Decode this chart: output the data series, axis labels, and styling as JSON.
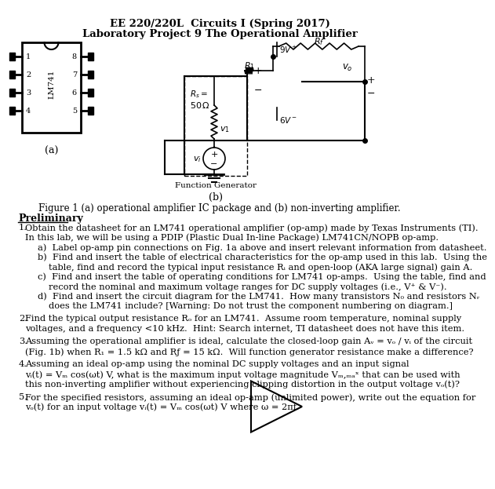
{
  "title1": "EE 220/220L  Circuits I (Spring 2017)",
  "title2": "Laboratory Project 9 The Operational Amplifier",
  "fig_caption": "Figure 1 (a) operational amplifier IC package and (b) non-inverting amplifier.",
  "section": "Preliminary",
  "items": [
    {
      "num": "1.",
      "lines": [
        "Obtain the datasheet for an LM741 operational amplifier (op-amp) made by Texas Instruments (TI).",
        "In this lab, we will be using a PDIP (Plastic Dual In-line Package) LM741CN/NOPB op-amp.",
        "a)  Label op-amp pin connections on Fig. 1a above and insert relevant information from datasheet.",
        "b)  Find and insert the table of electrical characteristics for the op-amp used in this lab.  Using the",
        "table, find and record the typical input resistance Rᵢ and open-loop (AKA large signal) gain A.",
        "c)  Find and insert the table of operating conditions for LM741 op-amps.  Using the table, find and",
        "record the nominal and maximum voltage ranges for DC supply voltages (i.e., V⁺ & V⁻).",
        "d)  Find and insert the circuit diagram for the LM741.  How many transistors N₀ and resistors Nᵣ",
        "does the LM741 include? [Warning: Do not trust the component numbering on diagram.]"
      ],
      "indents": [
        0,
        0,
        1,
        1,
        2,
        1,
        2,
        1,
        2
      ]
    },
    {
      "num": "2.",
      "lines": [
        "Find the typical output resistance Rₒ for an LM741.  Assume room temperature, nominal supply",
        "voltages, and a frequency <10 kHz.  Hint: Search internet, TI datasheet does not have this item."
      ],
      "indents": [
        0,
        0
      ]
    },
    {
      "num": "3.",
      "lines": [
        "Assuming the operational amplifier is ideal, calculate the closed-loop gain Aᵥ = vₒ / vᵢ of the circuit",
        "(Fig. 1b) when R₁ = 1.5 kΩ and Rƒ = 15 kΩ.  Will function generator resistance make a difference?"
      ],
      "indents": [
        0,
        0
      ]
    },
    {
      "num": "4.",
      "lines": [
        "Assuming an ideal op-amp using the nominal DC supply voltages and an input signal",
        "vᵢ(t) = Vₘ cos(ωt) V, what is the maximum input voltage magnitude Vₘ,ₘₐˣ that can be used with",
        "this non-inverting amplifier without experiencing clipping distortion in the output voltage vₒ(t)?"
      ],
      "indents": [
        0,
        0,
        0
      ]
    },
    {
      "num": "5.",
      "lines": [
        "For the specified resistors, assuming an ideal op-amp (unlimited power), write out the equation for",
        "vₒ(t) for an input voltage vᵢ(t) = Vₘ cos(ωt) V where ω = 2πf."
      ],
      "indents": [
        0,
        0
      ]
    }
  ],
  "bg_color": "#ffffff"
}
